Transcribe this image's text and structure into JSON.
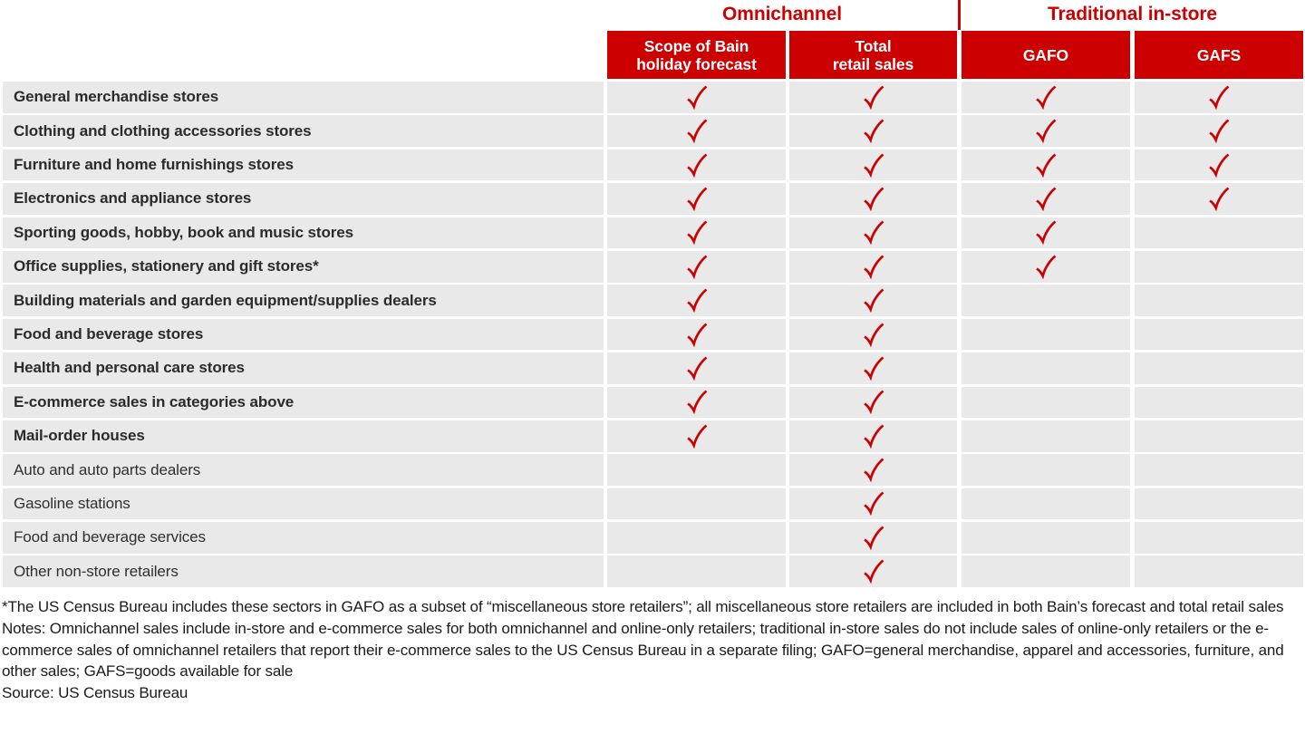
{
  "colors": {
    "brand_red": "#cc0000",
    "row_background": "#e9e9ea",
    "label_text": "#2b2b2b",
    "header_text": "#ffffff"
  },
  "header": {
    "groups": [
      {
        "label": "Omnichannel"
      },
      {
        "label": "Traditional in-store"
      }
    ],
    "columns": [
      {
        "name": "scope-of-bain-holiday-forecast",
        "lines": [
          "Scope of Bain",
          "holiday forecast"
        ]
      },
      {
        "name": "total-retail-sales",
        "lines": [
          "Total",
          "retail sales"
        ]
      },
      {
        "name": "gafo",
        "lines": [
          "GAFO"
        ]
      },
      {
        "name": "gafs",
        "lines": [
          "GAFS"
        ]
      }
    ]
  },
  "chart_data": {
    "type": "table",
    "check_icon": "red-checkmark",
    "column_groups": [
      {
        "label": "Omnichannel",
        "columns": [
          "Scope of Bain holiday forecast",
          "Total retail sales"
        ]
      },
      {
        "label": "Traditional in-store",
        "columns": [
          "GAFO",
          "GAFS"
        ]
      }
    ],
    "columns": [
      "Scope of Bain holiday forecast",
      "Total retail sales",
      "GAFO",
      "GAFS"
    ],
    "rows": [
      {
        "label": "General merchandise stores",
        "bold": true,
        "checks": [
          true,
          true,
          true,
          true
        ]
      },
      {
        "label": "Clothing and clothing accessories stores",
        "bold": true,
        "checks": [
          true,
          true,
          true,
          true
        ]
      },
      {
        "label": "Furniture and home furnishings stores",
        "bold": true,
        "checks": [
          true,
          true,
          true,
          true
        ]
      },
      {
        "label": "Electronics and appliance stores",
        "bold": true,
        "checks": [
          true,
          true,
          true,
          true
        ]
      },
      {
        "label": "Sporting goods, hobby, book and music stores",
        "bold": true,
        "checks": [
          true,
          true,
          true,
          false
        ]
      },
      {
        "label": "Office supplies, stationery and gift stores*",
        "bold": true,
        "checks": [
          true,
          true,
          true,
          false
        ]
      },
      {
        "label": "Building materials and garden equipment/supplies dealers",
        "bold": true,
        "checks": [
          true,
          true,
          false,
          false
        ]
      },
      {
        "label": "Food and beverage stores",
        "bold": true,
        "checks": [
          true,
          true,
          false,
          false
        ]
      },
      {
        "label": "Health and personal care stores",
        "bold": true,
        "checks": [
          true,
          true,
          false,
          false
        ]
      },
      {
        "label": "E-commerce sales in categories above",
        "bold": true,
        "checks": [
          true,
          true,
          false,
          false
        ]
      },
      {
        "label": "Mail-order houses",
        "bold": true,
        "checks": [
          true,
          true,
          false,
          false
        ]
      },
      {
        "label": "Auto and auto parts dealers",
        "bold": false,
        "checks": [
          false,
          true,
          false,
          false
        ]
      },
      {
        "label": "Gasoline stations",
        "bold": false,
        "checks": [
          false,
          true,
          false,
          false
        ]
      },
      {
        "label": "Food and beverage services",
        "bold": false,
        "checks": [
          false,
          true,
          false,
          false
        ]
      },
      {
        "label": "Other non-store retailers",
        "bold": false,
        "checks": [
          false,
          true,
          false,
          false
        ]
      }
    ]
  },
  "footnotes": [
    "*The US Census Bureau includes these sectors in GAFO as a subset of “miscellaneous store retailers”; all miscellaneous store retailers are included in both Bain’s forecast and total retail sales",
    "Notes: Omnichannel sales include in-store and e-commerce sales for both omnichannel and online-only retailers; traditional in-store sales do not include sales of online-only retailers or the e-commerce sales of omnichannel retailers that report their e-commerce sales to the US Census Bureau in a separate filing; GAFO=general merchandise, apparel and accessories, furniture, and other sales; GAFS=goods available for sale",
    "Source: US Census Bureau"
  ]
}
